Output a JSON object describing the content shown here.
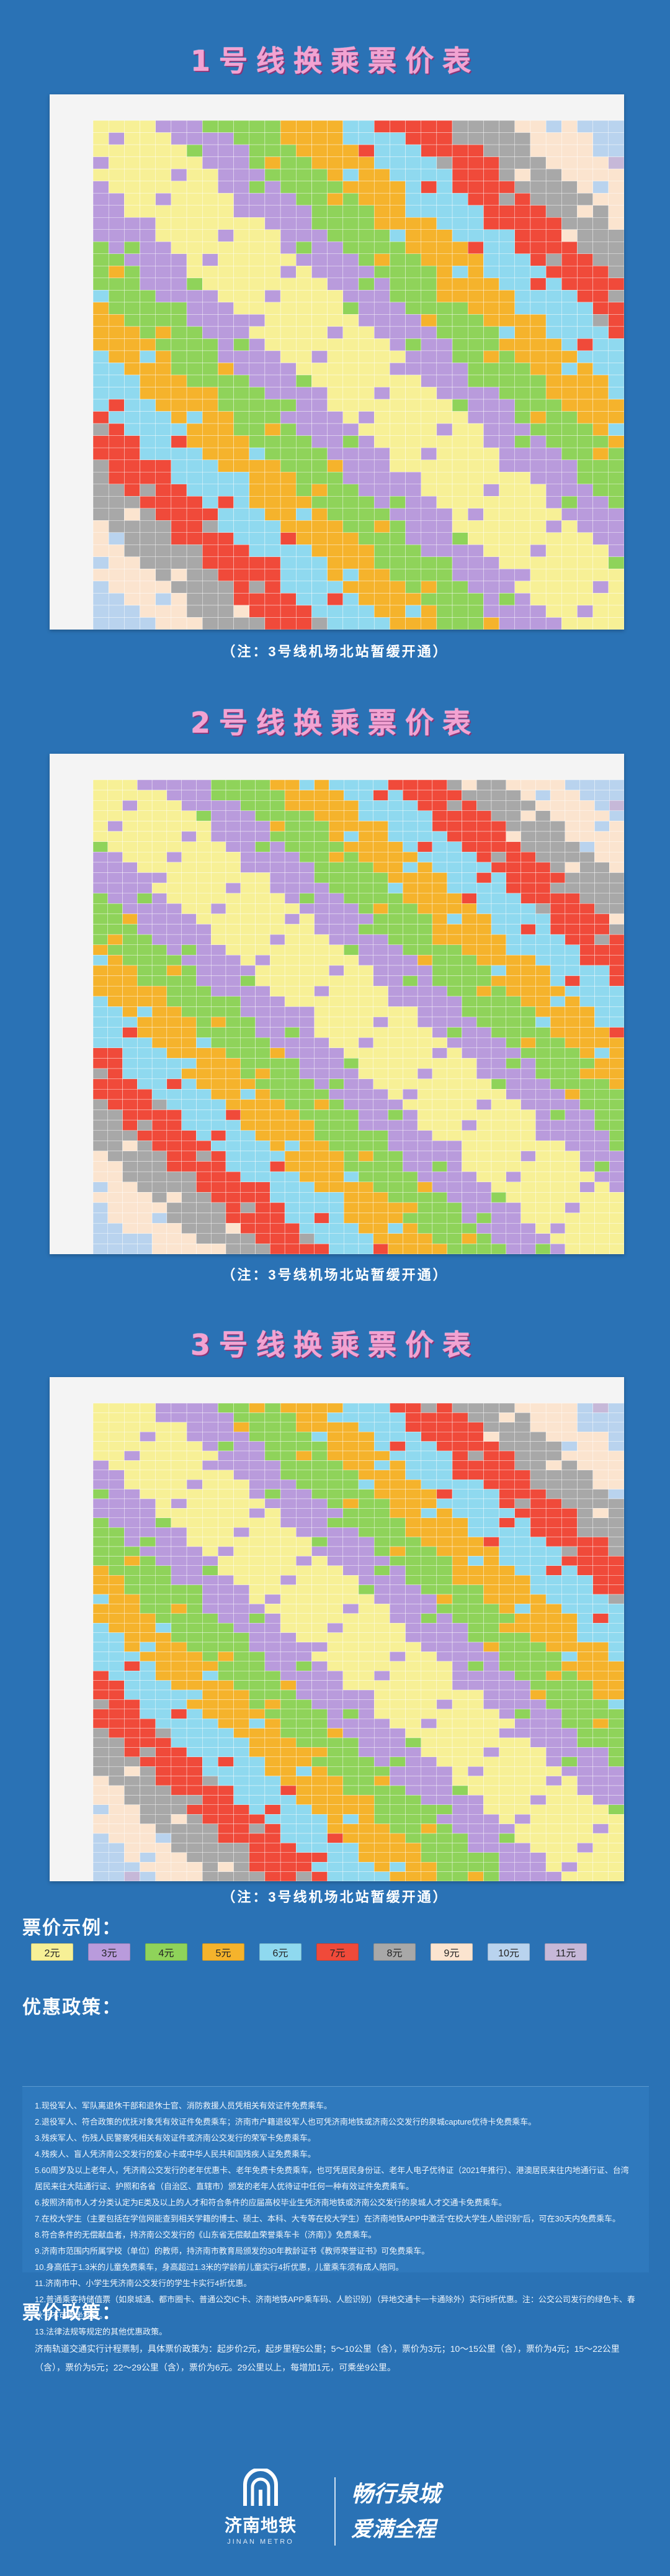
{
  "titles": {
    "line1": "1号线换乘票价表",
    "line2": "2号线换乘票价表",
    "line3": "3号线换乘票价表"
  },
  "notes": {
    "line1": "（注：3号线机场北站暂缓开通）",
    "line2": "（注：3号线机场北站暂缓开通）",
    "line3": "（注：3号线机场北站暂缓开通）"
  },
  "legend_heading": "票价示例：",
  "legend": [
    {
      "label": "2元",
      "color": "#f7f096"
    },
    {
      "label": "3元",
      "color": "#b99bdc"
    },
    {
      "label": "4元",
      "color": "#8fd35a"
    },
    {
      "label": "5元",
      "color": "#f5b32c"
    },
    {
      "label": "6元",
      "color": "#8fd9ef"
    },
    {
      "label": "7元",
      "color": "#f04a3a"
    },
    {
      "label": "8元",
      "color": "#a8a8a8"
    },
    {
      "label": "9元",
      "color": "#fbe4cf"
    },
    {
      "label": "10元",
      "color": "#b9d3ee"
    },
    {
      "label": "11元",
      "color": "#c6b8d8"
    }
  ],
  "policy_heading": "优惠政策：",
  "policy_lines": [
    "1.现役军人、军队离退休干部和退休士官、消防救援人员凭相关有效证件免费乘车。",
    "2.退役军人、符合政策的优抚对象凭有效证件免费乘车；济南市户籍退役军人也可凭济南地铁或济南公交发行的泉城capture优待卡免费乘车。",
    "3.残疾军人、伤残人民警察凭相关有效证件或济南公交发行的荣军卡免费乘车。",
    "4.残疾人、盲人凭济南公交发行的爱心卡或中华人民共和国残疾人证免费乘车。",
    "5.60周岁及以上老年人，凭济南公交发行的老年优惠卡、老年免费卡免费乘车，也可凭居民身份证、老年人电子优待证（2021年推行）、港澳居民来往内地通行证、台湾居民来往大陆通行证、护照和各省（自治区、直辖市）颁发的老年人优待证中任何一种有效证件免费乘车。",
    "6.按照济南市人才分类认定为E类及以上的人才和符合条件的应届高校毕业生凭济南地铁或济南公交发行的泉城人才交通卡免费乘车。",
    "7.在校大学生（主要包括在学信网能查到相关学籍的博士、硕士、本科、大专等在校大学生）在济南地铁APP中激活“在校大学生人脸识别”后，可在30天内免费乘车。",
    "8.符合条件的无偿献血者，持济南公交发行的《山东省无偿献血荣誉乘车卡（济南）》免费乘车。",
    "9.济南市范围内所属学校（单位）的教师，持济南市教育局颁发的30年教龄证书《教师荣誉证书》可免费乘车。",
    "10.身高低于1.3米的儿童免费乘车，身高超过1.3米的学龄前儿童实行4折优惠，儿童乘车须有成人陪同。",
    "11.济南市中、小学生凭济南公交发行的学生卡实行4折优惠。",
    "12.普通乘客持储值票（如泉城通、都市圈卡、普通公交IC卡、济南地铁APP乘车码、人脸识别）（异地交通卡一卡通除外）实行8折优惠。注：公交公司发行的绿色卡、春秋卡不可乘坐地铁。",
    "13.法律法规等规定的其他优惠政策。"
  ],
  "fare_heading": "票价政策：",
  "fare_text": "济南轨道交通实行计程票制，具体票价政策为：起步价2元，起步里程5公里；5～10公里（含），票价为3元；10～15公里（含），票价为4元；15～22公里（含），票价为5元；22～29公里（含），票价为6元。29公里以上，每增加1元，可乘坐9公里。",
  "footer": {
    "brand": "济南地铁",
    "brand_en": "JINAN METRO",
    "slogan_1": "畅行泉城",
    "slogan_2": "爱满全程"
  },
  "colors": {
    "background": "#2a72b5",
    "title": "#f3a2d2"
  }
}
